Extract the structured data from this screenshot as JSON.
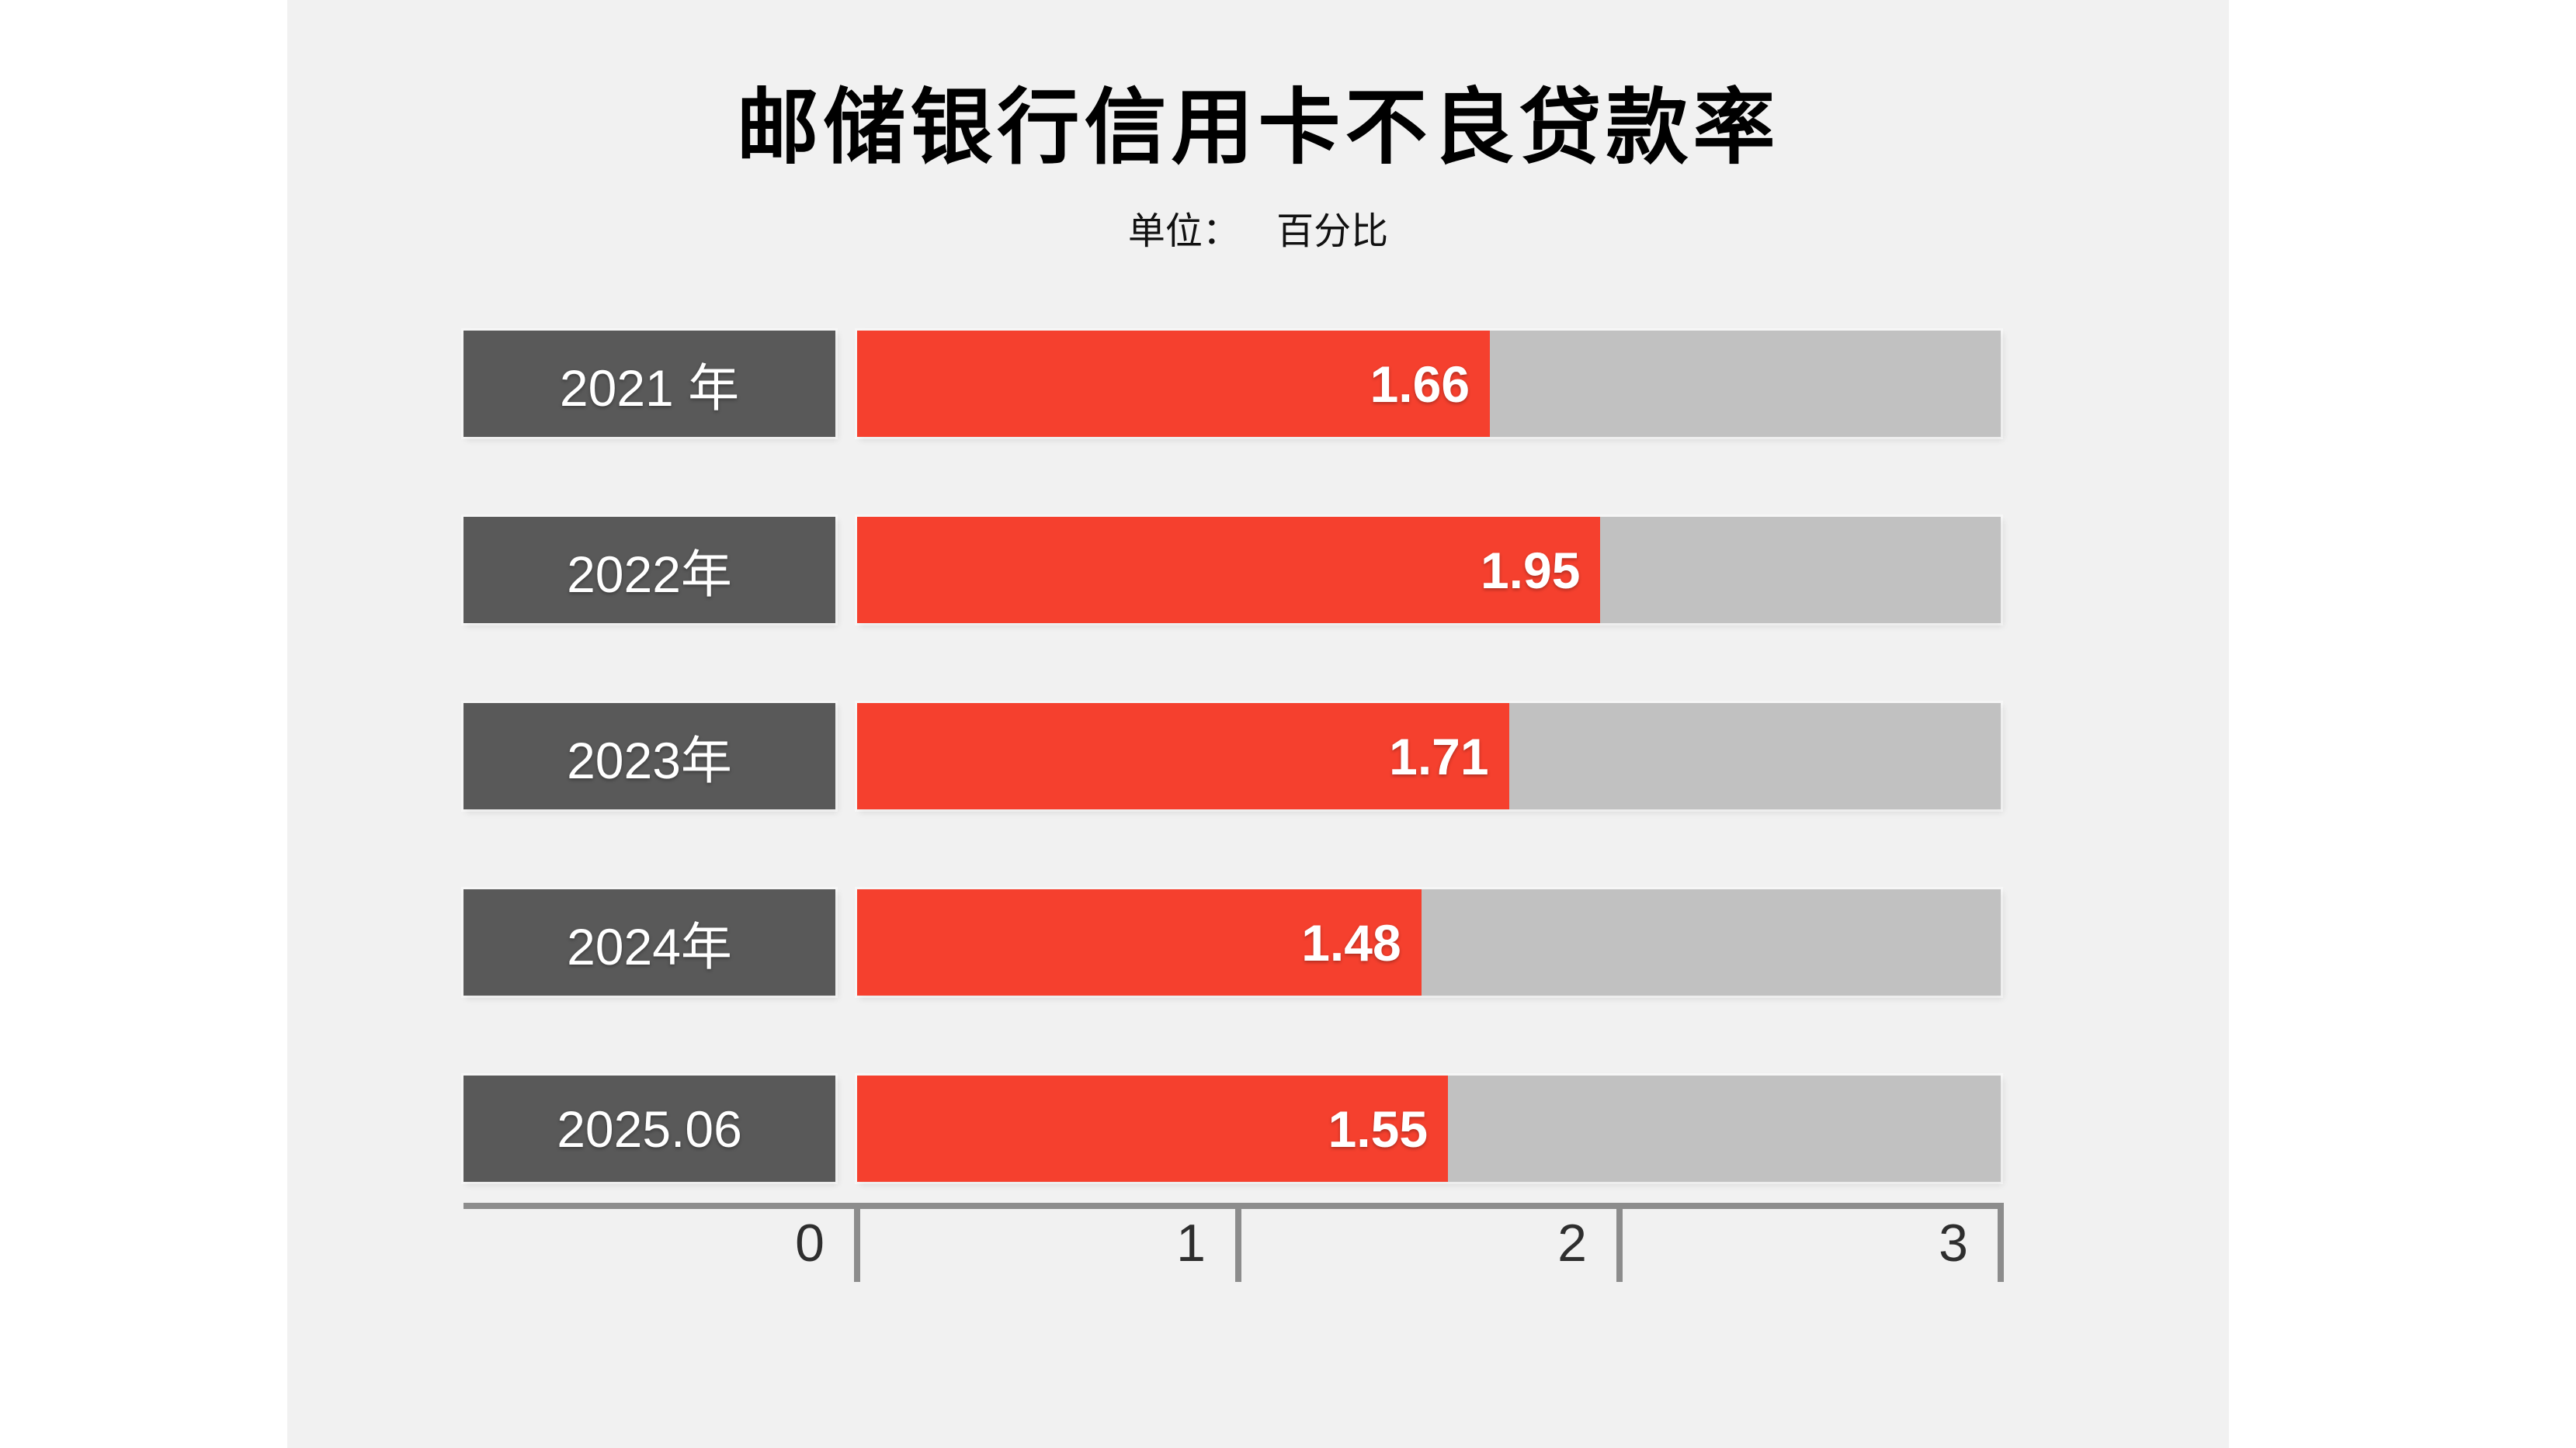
{
  "page": {
    "background": "#ffffff",
    "canvas_background": "#f1f1f1"
  },
  "header": {
    "title": "邮储银行信用卡不良贷款率",
    "unit_label": "单位：",
    "unit_value": "百分比"
  },
  "chart_data": {
    "type": "bar",
    "orientation": "horizontal",
    "title": "邮储银行信用卡不良贷款率",
    "subtitle": "单位： 百分比",
    "ylabel": "",
    "xlabel": "",
    "categories": [
      "2021 年",
      "2022年",
      "2023年",
      "2024年",
      "2025.06"
    ],
    "values": [
      1.66,
      1.95,
      1.71,
      1.48,
      1.55
    ],
    "value_labels": [
      "1.66",
      "1.95",
      "1.71",
      "1.48",
      "1.55"
    ],
    "xlim": [
      0,
      3
    ],
    "x_ticks": [
      "0",
      "1",
      "2",
      "3"
    ],
    "grid": "off",
    "legend_position": "none",
    "colors": {
      "bar_fill": "#f5402e",
      "bar_track": "#c1c1c1",
      "category_box": "#595959",
      "axis": "#8c8c8c",
      "value_text": "#ffffff",
      "category_text": "#ffffff",
      "tick_text": "#2e2e2e",
      "title_text": "#000000"
    }
  }
}
